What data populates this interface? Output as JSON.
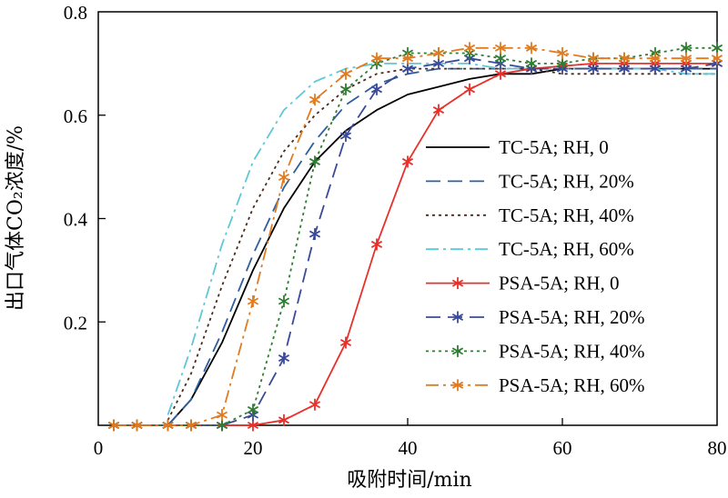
{
  "chart_data": {
    "type": "line",
    "title": "",
    "xlabel": "吸附时间/min",
    "ylabel": "出口气体CO₂浓度/%",
    "xlim": [
      0,
      80
    ],
    "ylim": [
      0,
      0.8
    ],
    "xticks": [
      "0",
      "20",
      "40",
      "60",
      "80"
    ],
    "yticks": [
      "0.2",
      "0.4",
      "0.6",
      "0.8"
    ],
    "legend_position": "right-center",
    "series": [
      {
        "name": "TC-5A; RH, 0",
        "color": "#000000",
        "dash": "solid",
        "marker": "none",
        "x": [
          9,
          12,
          16,
          20,
          24,
          28,
          32,
          36,
          40,
          44,
          48,
          52,
          56,
          60,
          64,
          68,
          72,
          76,
          80
        ],
        "y": [
          0,
          0.05,
          0.16,
          0.3,
          0.42,
          0.51,
          0.57,
          0.61,
          0.64,
          0.655,
          0.67,
          0.68,
          0.68,
          0.69,
          0.69,
          0.69,
          0.69,
          0.69,
          0.69
        ]
      },
      {
        "name": "TC-5A; RH, 20%",
        "color": "#2e5f9e",
        "dash": "longdash",
        "marker": "none",
        "x": [
          9,
          12,
          16,
          20,
          24,
          28,
          32,
          36,
          40,
          44,
          48,
          52,
          56,
          60,
          64,
          68,
          72,
          76,
          80
        ],
        "y": [
          0,
          0.05,
          0.18,
          0.33,
          0.46,
          0.55,
          0.62,
          0.66,
          0.68,
          0.69,
          0.69,
          0.69,
          0.69,
          0.69,
          0.69,
          0.69,
          0.69,
          0.69,
          0.69
        ]
      },
      {
        "name": "TC-5A; RH, 40%",
        "color": "#4a2a1a",
        "dash": "dot",
        "marker": "none",
        "x": [
          9,
          12,
          16,
          20,
          24,
          28,
          32,
          36,
          40,
          44,
          48,
          52,
          56,
          60,
          64,
          68,
          72,
          76,
          80
        ],
        "y": [
          0.01,
          0.1,
          0.27,
          0.42,
          0.53,
          0.6,
          0.65,
          0.68,
          0.69,
          0.69,
          0.69,
          0.69,
          0.69,
          0.68,
          0.68,
          0.68,
          0.68,
          0.68,
          0.68
        ]
      },
      {
        "name": "TC-5A; RH, 60%",
        "color": "#5ec8d8",
        "dash": "dashdot",
        "marker": "none",
        "x": [
          9,
          12,
          16,
          20,
          24,
          28,
          32,
          36,
          40,
          44,
          48,
          52,
          56,
          60,
          64,
          68,
          72,
          76,
          80
        ],
        "y": [
          0.02,
          0.15,
          0.35,
          0.51,
          0.61,
          0.665,
          0.69,
          0.7,
          0.7,
          0.7,
          0.7,
          0.69,
          0.69,
          0.69,
          0.69,
          0.69,
          0.69,
          0.68,
          0.68
        ]
      },
      {
        "name": "PSA-5A; RH, 0",
        "color": "#e8302a",
        "dash": "solid",
        "marker": "star",
        "x": [
          2,
          5,
          9,
          12,
          16,
          20,
          24,
          28,
          32,
          36,
          40,
          44,
          48,
          52,
          56,
          60,
          64,
          68,
          72,
          76,
          80
        ],
        "y": [
          0,
          0,
          0,
          0,
          0,
          0,
          0.01,
          0.04,
          0.16,
          0.35,
          0.51,
          0.61,
          0.65,
          0.68,
          0.69,
          0.695,
          0.7,
          0.7,
          0.7,
          0.7,
          0.7
        ]
      },
      {
        "name": "PSA-5A; RH, 20%",
        "color": "#3a4a9a",
        "dash": "longdash",
        "marker": "star",
        "x": [
          2,
          5,
          9,
          12,
          16,
          20,
          24,
          28,
          32,
          36,
          40,
          44,
          48,
          52,
          56,
          60,
          64,
          68,
          72,
          76,
          80
        ],
        "y": [
          0,
          0,
          0,
          0,
          0,
          0.02,
          0.13,
          0.37,
          0.56,
          0.65,
          0.69,
          0.7,
          0.71,
          0.7,
          0.69,
          0.69,
          0.69,
          0.69,
          0.69,
          0.69,
          0.7
        ]
      },
      {
        "name": "PSA-5A; RH, 40%",
        "color": "#2e7d32",
        "dash": "dot",
        "marker": "star",
        "x": [
          2,
          5,
          9,
          12,
          16,
          20,
          24,
          28,
          32,
          36,
          40,
          44,
          48,
          52,
          56,
          60,
          64,
          68,
          72,
          76,
          80
        ],
        "y": [
          0,
          0,
          0,
          0,
          0,
          0.03,
          0.24,
          0.51,
          0.65,
          0.7,
          0.72,
          0.72,
          0.72,
          0.71,
          0.7,
          0.7,
          0.71,
          0.71,
          0.72,
          0.73,
          0.73
        ]
      },
      {
        "name": "PSA-5A; RH, 60%",
        "color": "#e07b20",
        "dash": "dashdot",
        "marker": "star",
        "x": [
          2,
          5,
          9,
          12,
          16,
          20,
          24,
          28,
          32,
          36,
          40,
          44,
          48,
          52,
          56,
          60,
          64,
          68,
          72,
          76,
          80
        ],
        "y": [
          0,
          0,
          0,
          0,
          0.02,
          0.24,
          0.48,
          0.63,
          0.68,
          0.71,
          0.71,
          0.72,
          0.73,
          0.73,
          0.73,
          0.72,
          0.71,
          0.71,
          0.71,
          0.71,
          0.71
        ]
      }
    ]
  }
}
